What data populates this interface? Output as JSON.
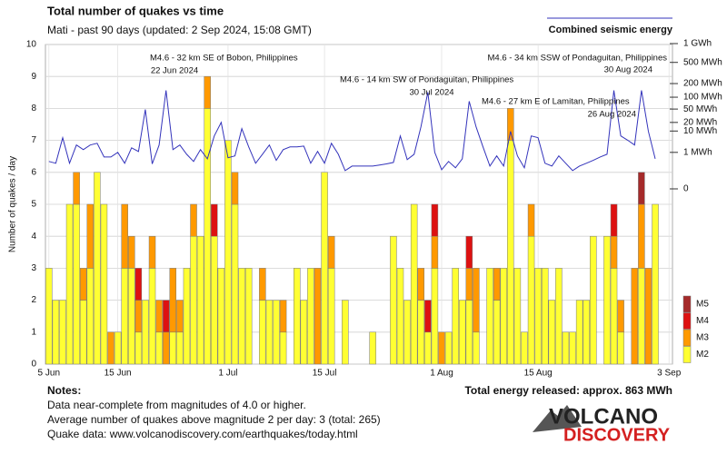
{
  "chart_data": {
    "type": "bar",
    "stacked": true,
    "title": "Total number of quakes vs time",
    "subtitle": "Mati - past 90 days (updated: 2 Sep 2024, 15:08 GMT)",
    "ylabel": "Number of quakes / day",
    "categories": [
      "5 Jun",
      null,
      null,
      null,
      null,
      null,
      null,
      null,
      null,
      null,
      "15 Jun",
      null,
      null,
      null,
      null,
      null,
      null,
      null,
      null,
      null,
      null,
      null,
      null,
      null,
      null,
      null,
      "1 Jul",
      null,
      null,
      null,
      null,
      null,
      null,
      null,
      null,
      null,
      null,
      null,
      null,
      null,
      "15 Jul",
      null,
      null,
      null,
      null,
      null,
      null,
      null,
      null,
      null,
      null,
      null,
      null,
      null,
      null,
      null,
      null,
      "1 Aug",
      null,
      null,
      null,
      null,
      null,
      null,
      null,
      null,
      null,
      null,
      null,
      null,
      null,
      "15 Aug",
      null,
      null,
      null,
      null,
      null,
      null,
      null,
      null,
      null,
      null,
      null,
      null,
      null,
      null,
      null,
      null,
      null,
      null,
      "3 Sep"
    ],
    "ylim": [
      0,
      10
    ],
    "yticks": [
      0,
      1,
      2,
      3,
      4,
      5,
      6,
      7,
      8,
      9,
      10
    ],
    "grid": true,
    "y2lim": [
      0,
      1000
    ],
    "y2scale": "pow",
    "y2exponent": 0.2,
    "y2ticks": [
      {
        "value": 1000,
        "label": "1 GWh"
      },
      {
        "value": 500,
        "label": "500 MWh"
      },
      {
        "value": 200,
        "label": "200 MWh"
      },
      {
        "value": 100,
        "label": "100 MWh"
      },
      {
        "value": 50,
        "label": "50 MWh"
      },
      {
        "value": 20,
        "label": "20 MWh"
      },
      {
        "value": 10,
        "label": "10 MWh"
      },
      {
        "value": 1,
        "label": "1 MWh"
      },
      0
    ],
    "series": [
      {
        "name": "M2",
        "color": "#ffff33",
        "values": [
          3,
          2,
          2,
          5,
          5,
          2,
          3,
          6,
          5,
          0,
          1,
          3,
          3,
          1,
          2,
          3,
          1,
          0,
          1,
          1,
          3,
          4,
          4,
          8,
          4,
          3,
          7,
          5,
          3,
          3,
          0,
          2,
          2,
          2,
          1,
          0,
          3,
          2,
          3,
          0,
          6,
          3,
          0,
          2,
          0,
          0,
          0,
          1,
          0,
          0,
          4,
          3,
          2,
          5,
          2,
          1,
          3,
          0,
          1,
          3,
          2,
          2,
          1,
          0,
          3,
          2,
          3,
          7,
          3,
          1,
          4,
          3,
          3,
          2,
          3,
          1,
          1,
          2,
          2,
          4,
          0,
          4,
          3,
          1,
          0,
          0,
          3,
          0,
          5,
          0,
          0
        ]
      },
      {
        "name": "M3",
        "color": "#ff9900",
        "values": [
          0,
          0,
          0,
          0,
          1,
          1,
          2,
          0,
          0,
          1,
          0,
          2,
          1,
          1,
          0,
          1,
          1,
          1,
          2,
          1,
          0,
          1,
          0,
          1,
          0,
          0,
          0,
          1,
          0,
          0,
          0,
          1,
          0,
          0,
          1,
          0,
          0,
          0,
          0,
          3,
          0,
          1,
          0,
          0,
          0,
          0,
          0,
          0,
          0,
          0,
          0,
          0,
          0,
          0,
          1,
          0,
          1,
          1,
          0,
          0,
          0,
          1,
          2,
          0,
          0,
          1,
          0,
          1,
          0,
          0,
          1,
          0,
          0,
          0,
          0,
          0,
          0,
          0,
          0,
          0,
          0,
          0,
          1,
          1,
          0,
          3,
          2,
          3,
          0,
          0,
          0
        ]
      },
      {
        "name": "M4",
        "color": "#dd1111",
        "values": [
          0,
          0,
          0,
          0,
          0,
          0,
          0,
          0,
          0,
          0,
          0,
          0,
          0,
          1,
          0,
          0,
          0,
          1,
          0,
          0,
          0,
          0,
          0,
          0,
          1,
          0,
          0,
          0,
          0,
          0,
          0,
          0,
          0,
          0,
          0,
          0,
          0,
          0,
          0,
          0,
          0,
          0,
          0,
          0,
          0,
          0,
          0,
          0,
          0,
          0,
          0,
          0,
          0,
          0,
          0,
          1,
          1,
          0,
          0,
          0,
          0,
          1,
          0,
          0,
          0,
          0,
          0,
          0,
          0,
          0,
          0,
          0,
          0,
          0,
          0,
          0,
          0,
          0,
          0,
          0,
          0,
          0,
          1,
          0,
          0,
          0,
          0,
          0,
          0,
          0,
          0
        ]
      },
      {
        "name": "M5",
        "color": "#a52a2a",
        "values": [
          0,
          0,
          0,
          0,
          0,
          0,
          0,
          0,
          0,
          0,
          0,
          0,
          0,
          0,
          0,
          0,
          0,
          0,
          0,
          0,
          0,
          0,
          0,
          0,
          0,
          0,
          0,
          0,
          0,
          0,
          0,
          0,
          0,
          0,
          0,
          0,
          0,
          0,
          0,
          0,
          0,
          0,
          0,
          0,
          0,
          0,
          0,
          0,
          0,
          0,
          0,
          0,
          0,
          0,
          0,
          0,
          0,
          0,
          0,
          0,
          0,
          0,
          0,
          0,
          0,
          0,
          0,
          0,
          0,
          0,
          0,
          0,
          0,
          0,
          0,
          0,
          0,
          0,
          0,
          0,
          0,
          0,
          0,
          0,
          0,
          0,
          1,
          0,
          0,
          0,
          0
        ]
      },
      {
        "name": "Combined seismic energy",
        "type": "line",
        "axis": "y2",
        "color": "#3333bb",
        "values": [
          0.24,
          0.17,
          5.4,
          0.17,
          2.5,
          1.44,
          2.5,
          3.05,
          0.51,
          0.51,
          1,
          0.17,
          1.8,
          1.13,
          48.7,
          0.15,
          2.5,
          143,
          1.44,
          2.5,
          0.77,
          0.24,
          1.44,
          0.38,
          6.4,
          20,
          0.45,
          0.6,
          12.2,
          2.0,
          0.17,
          0.77,
          2.5,
          0.29,
          1.44,
          2.0,
          2.0,
          2.2,
          0.17,
          1.13,
          0.17,
          3.05,
          0.77,
          0.031,
          0.095,
          0.095,
          0.095,
          0.095,
          0.12,
          0.15,
          0.2,
          6.4,
          0.33,
          0.77,
          14.2,
          130,
          1,
          0.04,
          0.24,
          0.064,
          0.38,
          79.6,
          14.2,
          2.0,
          0.095,
          0.6,
          0.095,
          9.7,
          0.6,
          0.064,
          6.4,
          5.4,
          0.17,
          0.095,
          0.6,
          0.17,
          0.031,
          0.095,
          0.17,
          0.29,
          0.51,
          0.77,
          143,
          6.4,
          4.2,
          2.5,
          143,
          9.7,
          0.38,
          null,
          null
        ]
      }
    ],
    "annotations": [
      {
        "text": "M4.6 - 32 km SE of Bobon, Philippines",
        "date": "22 Jun 2024"
      },
      {
        "text": "M4.6 - 14 km SW of Pondaguitan, Philippines",
        "date": "30 Jul 2024"
      },
      {
        "text": "M4.6 - 27 km E of Lamitan, Philippines",
        "date": "26 Aug 2024"
      },
      {
        "text": "M4.6 - 34 km SSW of Pondaguitan, Philippines",
        "date": "30 Aug 2024"
      }
    ],
    "total_energy": "Total energy released: approx. 863 MWh"
  },
  "notes": {
    "title": "Notes:",
    "lines": [
      "Data near-complete from magnitudes of 4.0 or higher.",
      "Average number of quakes above magnitude 2 per day: 3 (total: 265)",
      "Quake data: www.volcanodiscovery.com/earthquakes/today.html"
    ]
  },
  "logo": {
    "top": "VOLCANO",
    "bottom": "DISCOVERY"
  }
}
